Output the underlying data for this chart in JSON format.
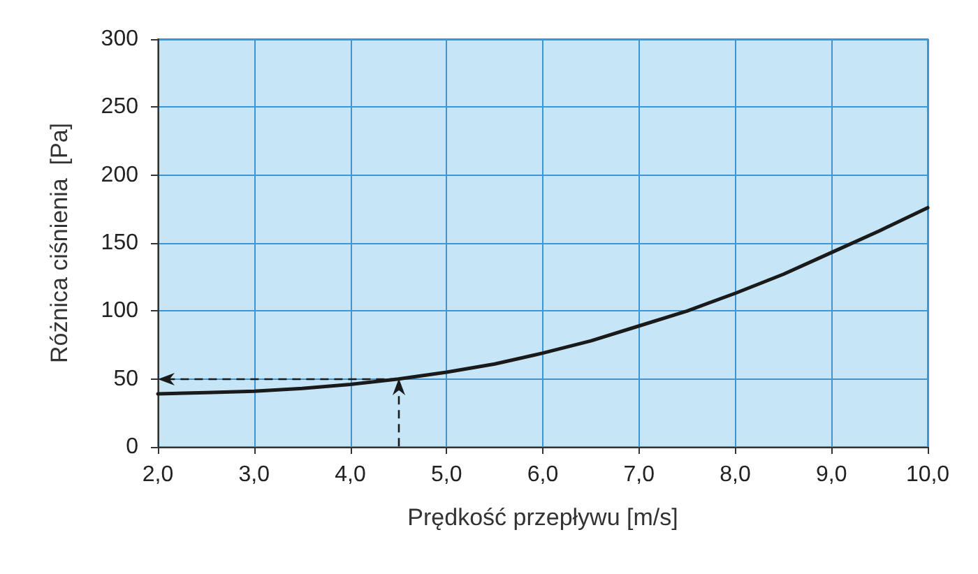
{
  "chart_data": {
    "type": "line",
    "xlabel": "Prędkość przepływu [m/s]",
    "ylabel": "Różnica ciśnienia  [Pa]",
    "xlim": [
      2.0,
      10.0
    ],
    "xticks": [
      {
        "value": 2,
        "label": "2,0"
      },
      {
        "value": 3,
        "label": "3,0"
      },
      {
        "value": 4,
        "label": "4,0"
      },
      {
        "value": 5,
        "label": "5,0"
      },
      {
        "value": 6,
        "label": "6,0"
      },
      {
        "value": 7,
        "label": "7,0"
      },
      {
        "value": 8,
        "label": "8,0"
      },
      {
        "value": 9,
        "label": "9,0"
      },
      {
        "value": 10,
        "label": "10,0"
      }
    ],
    "ylim": [
      0,
      300
    ],
    "yticks": [
      0,
      50,
      100,
      150,
      200,
      250,
      300
    ],
    "grid": true,
    "marker": "none",
    "line_style": "solid",
    "series": [
      {
        "color": "#1a1a1a",
        "x": [
          2.0,
          2.5,
          3.0,
          3.5,
          4.0,
          4.5,
          5.0,
          5.5,
          6.0,
          6.5,
          7.0,
          7.5,
          8.0,
          8.5,
          9.0,
          9.5,
          10.0
        ],
        "values": [
          39,
          40,
          41,
          43,
          46,
          50,
          55,
          61,
          69,
          78,
          89,
          100,
          113,
          127,
          143,
          159,
          176
        ]
      }
    ],
    "ref_lines": [
      {
        "axis": "x",
        "value": 4.5,
        "color": "#1a1a1a",
        "line_style": "dashed"
      },
      {
        "axis": "y",
        "value": 50,
        "color": "#1a1a1a",
        "line_style": "dashed"
      }
    ]
  }
}
